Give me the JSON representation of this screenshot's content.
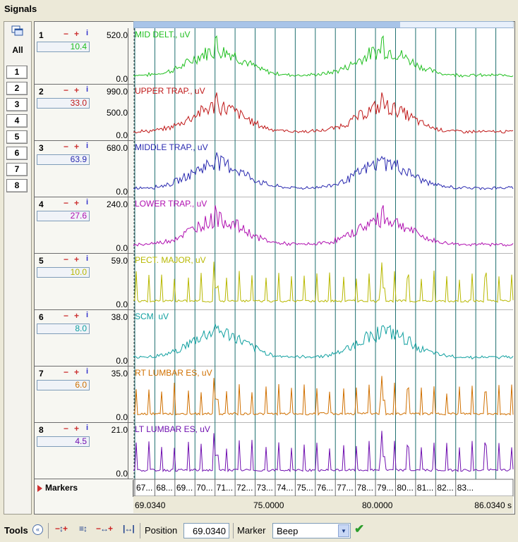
{
  "window": {
    "title": "Signals"
  },
  "sidebar": {
    "all_label": "All",
    "channel_buttons": [
      "1",
      "2",
      "3",
      "4",
      "5",
      "6",
      "7",
      "8"
    ]
  },
  "channels": [
    {
      "number": "1",
      "value": "10.4",
      "ymax": "520.0",
      "ymin": "0.0",
      "name": "MID DELT., uV",
      "color": "#1fbf1f",
      "gridlines": []
    },
    {
      "number": "2",
      "value": "33.0",
      "ymax": "990.0",
      "ymin": "0.0",
      "mid": "500.0",
      "name": "UPPER TRAP., uV",
      "color": "#c01818"
    },
    {
      "number": "3",
      "value": "63.9",
      "ymax": "680.0",
      "ymin": "0.0",
      "name": "MIDDLE TRAP., uV",
      "color": "#2a2ab0"
    },
    {
      "number": "4",
      "value": "27.6",
      "ymax": "240.0",
      "ymin": "0.0",
      "name": "LOWER TRAP., uV",
      "color": "#b010b0"
    },
    {
      "number": "5",
      "value": "10.0",
      "ymax": "59.0",
      "ymin": "0.0",
      "name": "PECT. MAJOR, uV",
      "color": "#b8b800"
    },
    {
      "number": "6",
      "value": "8.0",
      "ymax": "38.0",
      "ymin": "0.0",
      "name": "SCM, uV",
      "color": "#10a0a0"
    },
    {
      "number": "7",
      "value": "6.0",
      "ymax": "35.0",
      "ymin": "0.0",
      "name": "RT LUMBAR ES, uV",
      "color": "#d07000"
    },
    {
      "number": "8",
      "value": "4.5",
      "ymax": "21.0",
      "ymin": "0.0",
      "name": "LT LUMBAR ES, uV",
      "color": "#7010b0"
    }
  ],
  "controls": {
    "minus": "−",
    "plus": "+",
    "info": "i"
  },
  "markers": {
    "label": "Markers"
  },
  "time_axis": {
    "start": 67.0,
    "end": 86.0,
    "tick_labels": [
      "67...",
      "68...",
      "69...",
      "70...",
      "71...",
      "72...",
      "73...",
      "74...",
      "75...",
      "76...",
      "77...",
      "78...",
      "79...",
      "80...",
      "81...",
      "82...",
      "83..."
    ],
    "range_labels": [
      "69.0340",
      "75.0000",
      "80.0000",
      "86.0340 s"
    ]
  },
  "toolbar": {
    "tools_label": "Tools",
    "position_label": "Position",
    "position_value": "69.0340",
    "marker_label": "Marker",
    "marker_value": "Beep"
  },
  "colors": {
    "gridline": "#1f6f6f",
    "frame": "#6d6d6d",
    "scrollbar": "#a8c4e8"
  },
  "icons": [
    "multi-window-icon",
    "collapse-chevron-icon",
    "zoom-vertical-icon",
    "fit-vertical-icon",
    "zoom-horizontal-icon",
    "fit-horizontal-icon",
    "check-icon",
    "dropdown-arrow-icon",
    "markers-expand-icon"
  ]
}
